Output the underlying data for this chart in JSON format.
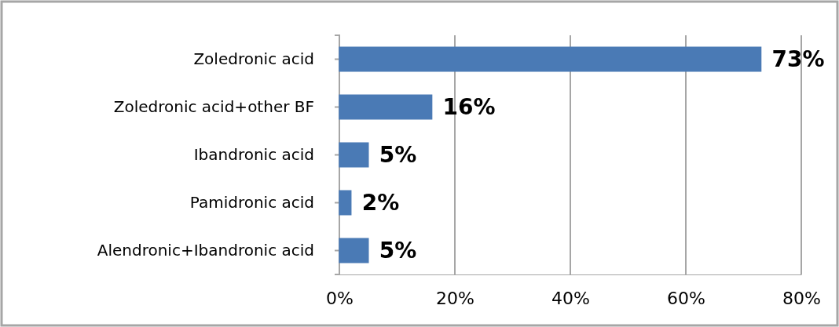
{
  "chart_data": {
    "type": "bar",
    "orientation": "horizontal",
    "categories": [
      "Zoledronic acid",
      "Zoledronic acid+other BF",
      "Ibandronic acid",
      "Pamidronic acid",
      "Alendronic+Ibandronic acid"
    ],
    "values": [
      73,
      16,
      5,
      2,
      5
    ],
    "value_labels": [
      "73%",
      "16%",
      "5%",
      "2%",
      "5%"
    ],
    "color": "#4a7ab5",
    "xlim": [
      0,
      80
    ],
    "xticks": [
      {
        "value": 0,
        "label": "0%"
      },
      {
        "value": 20,
        "label": "20%"
      },
      {
        "value": 40,
        "label": "40%"
      },
      {
        "value": 60,
        "label": "60%"
      },
      {
        "value": 80,
        "label": "80%"
      }
    ],
    "grid": "x"
  }
}
